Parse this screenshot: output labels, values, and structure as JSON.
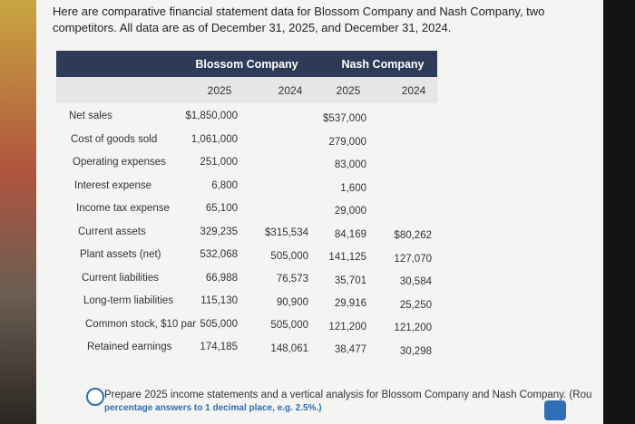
{
  "intro": "Here are comparative financial statement data for Blossom Company and Nash Company, two competitors. All data are as of December 31, 2025, and December 31, 2024.",
  "table": {
    "companies": [
      "Blossom Company",
      "Nash Company"
    ],
    "years": [
      "2025",
      "2024",
      "2025",
      "2024"
    ],
    "rows": [
      [
        "Net sales",
        "$1,850,000",
        null,
        "$537,000",
        null
      ],
      [
        "Cost of goods sold",
        "1,061,000",
        null,
        "279,000",
        null
      ],
      [
        "Operating expenses",
        "251,000",
        null,
        "83,000",
        null
      ],
      [
        "Interest expense",
        "6,800",
        null,
        "1,600",
        null
      ],
      [
        "Income tax expense",
        "65,100",
        null,
        "29,000",
        null
      ],
      [
        "Current assets",
        "329,235",
        "$315,534",
        "84,169",
        "$80,262"
      ],
      [
        "Plant assets (net)",
        "532,068",
        "505,000",
        "141,125",
        "127,070"
      ],
      [
        "Current liabilities",
        "66,988",
        "76,573",
        "35,701",
        "30,584"
      ],
      [
        "Long-term liabilities",
        "115,130",
        "90,900",
        "29,916",
        "25,250"
      ],
      [
        "Common stock, $10 par",
        "505,000",
        "505,000",
        "121,200",
        "121,200"
      ],
      [
        "Retained earnings",
        "174,185",
        "148,061",
        "38,477",
        "30,298"
      ]
    ]
  },
  "instruction": {
    "line1": "Prepare 2025 income statements and a vertical analysis for Blossom Company and Nash Company. (Rou",
    "line2": "percentage answers to 1 decimal place, e.g. 2.5%.)"
  }
}
